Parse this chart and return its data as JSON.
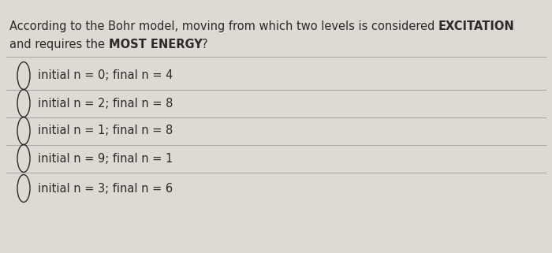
{
  "background_color": "#cdc8be",
  "question_line1_normal": "According to the Bohr model, moving from which two levels is considered ",
  "question_line1_bold": "EXCITATION",
  "question_line2_normal": "and requires the ",
  "question_line2_bold": "MOST ENERGY",
  "question_line2_end": "?",
  "options": [
    "initial n = 0; final n = 4",
    "initial n = 2; final n = 8",
    "initial n = 1; final n = 8",
    "initial n = 9; final n = 1",
    "initial n = 3; final n = 6"
  ],
  "text_color": "#2a2a2a",
  "line_color": "#aaaaaa",
  "panel_color": "#dedad3",
  "font_size_question": 10.5,
  "font_size_option": 10.5
}
